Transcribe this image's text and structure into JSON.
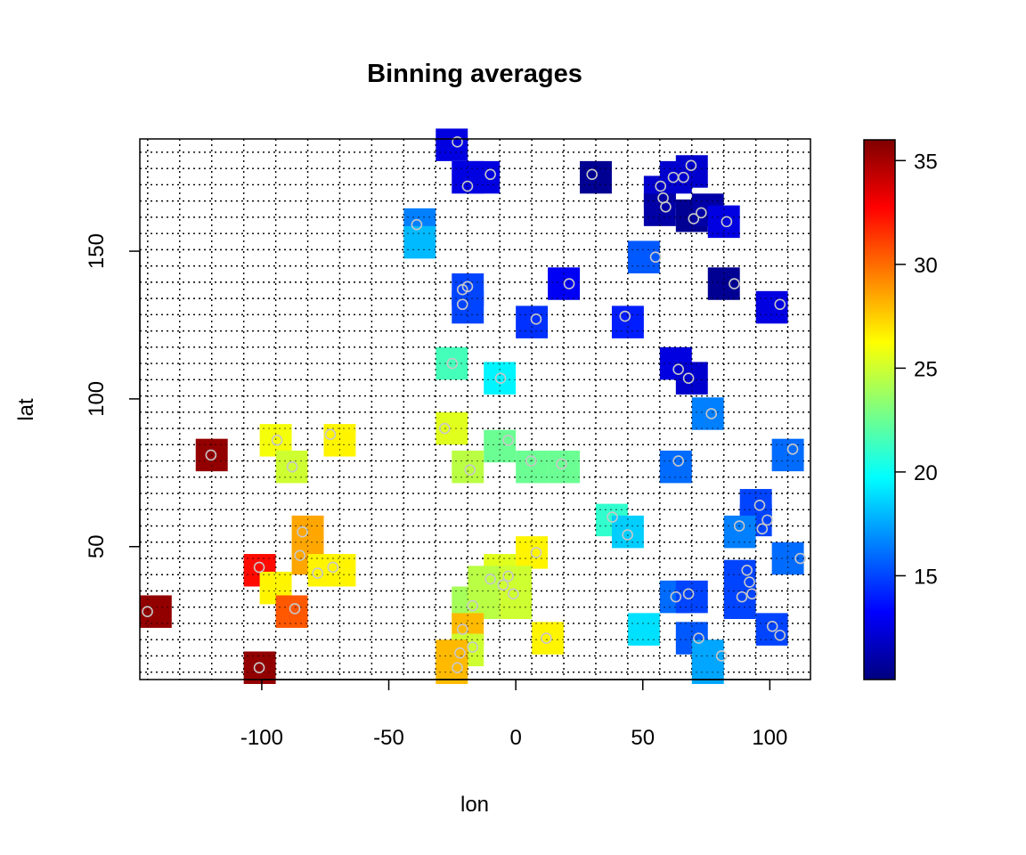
{
  "chart_data": {
    "type": "heatmap",
    "title": "Binning averages",
    "xlabel": "lon",
    "ylabel": "lat",
    "xlim": [
      -148,
      116
    ],
    "ylim": [
      5,
      188
    ],
    "x_ticks": [
      -100,
      -50,
      0,
      50,
      100
    ],
    "y_ticks": [
      50,
      100,
      150
    ],
    "grid": true,
    "cell_size": [
      12.6,
      11.0
    ],
    "legend": {
      "type": "colorbar",
      "placement": "right",
      "range": [
        10,
        36
      ],
      "ticks": [
        15,
        20,
        25,
        30,
        35
      ],
      "colors": [
        "#00007F",
        "#0000FF",
        "#007FFF",
        "#00FFFF",
        "#7FFF7F",
        "#FFFF00",
        "#FF7F00",
        "#FF0000",
        "#7F0000"
      ]
    },
    "cells": [
      {
        "x": -25.2,
        "y": 186,
        "v": 12.5
      },
      {
        "x": -18.9,
        "y": 175,
        "v": 12.5
      },
      {
        "x": -12.6,
        "y": 175,
        "v": 12.5
      },
      {
        "x": 31.5,
        "y": 175,
        "v": 10.5
      },
      {
        "x": 69.3,
        "y": 177,
        "v": 12.0
      },
      {
        "x": 63.0,
        "y": 175,
        "v": 12.0
      },
      {
        "x": 56.7,
        "y": 170,
        "v": 12.0
      },
      {
        "x": 56.7,
        "y": 164,
        "v": 11.0
      },
      {
        "x": 69.3,
        "y": 162,
        "v": 10.5
      },
      {
        "x": 75.6,
        "y": 164,
        "v": 11.0
      },
      {
        "x": 81.9,
        "y": 160,
        "v": 12.5
      },
      {
        "x": -37.8,
        "y": 159,
        "v": 16.5
      },
      {
        "x": -37.8,
        "y": 153,
        "v": 18.0
      },
      {
        "x": 50.4,
        "y": 148,
        "v": 15.5
      },
      {
        "x": -18.9,
        "y": 137,
        "v": 15.0
      },
      {
        "x": -18.9,
        "y": 131,
        "v": 15.0
      },
      {
        "x": 18.9,
        "y": 139,
        "v": 13.0
      },
      {
        "x": 81.9,
        "y": 139,
        "v": 10.5
      },
      {
        "x": 100.8,
        "y": 131,
        "v": 12.5
      },
      {
        "x": 6.3,
        "y": 126,
        "v": 14.5
      },
      {
        "x": 44.1,
        "y": 126,
        "v": 14.0
      },
      {
        "x": -25.2,
        "y": 112,
        "v": 21.5
      },
      {
        "x": 63.0,
        "y": 112,
        "v": 12.5
      },
      {
        "x": 69.3,
        "y": 107,
        "v": 12.0
      },
      {
        "x": -6.3,
        "y": 107,
        "v": 19.5
      },
      {
        "x": 75.6,
        "y": 95,
        "v": 16.5
      },
      {
        "x": -94.5,
        "y": 86,
        "v": 26.0
      },
      {
        "x": -69.3,
        "y": 86,
        "v": 26.5
      },
      {
        "x": -25.2,
        "y": 90,
        "v": 25.5
      },
      {
        "x": -6.3,
        "y": 84,
        "v": 22.5
      },
      {
        "x": 107.1,
        "y": 81,
        "v": 16.0
      },
      {
        "x": -119.7,
        "y": 81,
        "v": 35.5
      },
      {
        "x": -88.2,
        "y": 77,
        "v": 25.0
      },
      {
        "x": -18.9,
        "y": 77,
        "v": 24.5
      },
      {
        "x": 6.3,
        "y": 77,
        "v": 22.5
      },
      {
        "x": 18.9,
        "y": 77,
        "v": 22.5
      },
      {
        "x": 63.0,
        "y": 77,
        "v": 16.0
      },
      {
        "x": 94.5,
        "y": 64,
        "v": 15.0
      },
      {
        "x": 37.8,
        "y": 59,
        "v": 21.0
      },
      {
        "x": 94.5,
        "y": 59,
        "v": 15.0
      },
      {
        "x": 88.2,
        "y": 55,
        "v": 16.5
      },
      {
        "x": 44.1,
        "y": 55,
        "v": 18.5
      },
      {
        "x": -81.9,
        "y": 55,
        "v": 28.5
      },
      {
        "x": -81.9,
        "y": 46,
        "v": 28.5
      },
      {
        "x": 107.1,
        "y": 46,
        "v": 16.0
      },
      {
        "x": 6.3,
        "y": 48,
        "v": 26.5
      },
      {
        "x": -100.8,
        "y": 42,
        "v": 32.5
      },
      {
        "x": -75.6,
        "y": 42,
        "v": 26.5
      },
      {
        "x": -69.3,
        "y": 42,
        "v": 26.5
      },
      {
        "x": -6.3,
        "y": 42,
        "v": 25.5
      },
      {
        "x": -12.6,
        "y": 38,
        "v": 24.5
      },
      {
        "x": 0.0,
        "y": 38,
        "v": 25.0
      },
      {
        "x": -94.5,
        "y": 36,
        "v": 26.5
      },
      {
        "x": 88.2,
        "y": 40,
        "v": 15.0
      },
      {
        "x": 88.2,
        "y": 31,
        "v": 15.0
      },
      {
        "x": 63.0,
        "y": 33,
        "v": 16.0
      },
      {
        "x": 69.3,
        "y": 33,
        "v": 15.0
      },
      {
        "x": -18.9,
        "y": 31,
        "v": 24.0
      },
      {
        "x": -12.6,
        "y": 31,
        "v": 24.5
      },
      {
        "x": 0.0,
        "y": 31,
        "v": 25.0
      },
      {
        "x": -88.2,
        "y": 28,
        "v": 30.5
      },
      {
        "x": -141.75,
        "y": 28,
        "v": 35.5
      },
      {
        "x": 50.4,
        "y": 22,
        "v": 19.0
      },
      {
        "x": 100.8,
        "y": 22,
        "v": 15.0
      },
      {
        "x": -18.9,
        "y": 22,
        "v": 28.0
      },
      {
        "x": 12.6,
        "y": 19,
        "v": 26.5
      },
      {
        "x": 69.3,
        "y": 19,
        "v": 15.5
      },
      {
        "x": -18.9,
        "y": 15,
        "v": 25.0
      },
      {
        "x": -25.2,
        "y": 13,
        "v": 28.0
      },
      {
        "x": 75.6,
        "y": 13,
        "v": 17.5
      },
      {
        "x": -25.2,
        "y": 9,
        "v": 28.0
      },
      {
        "x": 75.6,
        "y": 9,
        "v": 17.5
      },
      {
        "x": -100.8,
        "y": 9,
        "v": 35.5
      }
    ],
    "points": [
      [
        -23,
        187
      ],
      [
        -19,
        172
      ],
      [
        -10,
        176
      ],
      [
        30,
        176
      ],
      [
        69,
        179
      ],
      [
        57,
        172
      ],
      [
        62,
        175
      ],
      [
        66,
        175
      ],
      [
        58,
        168
      ],
      [
        59,
        165
      ],
      [
        70,
        161
      ],
      [
        73,
        163
      ],
      [
        83,
        160
      ],
      [
        -39,
        159
      ],
      [
        55,
        148
      ],
      [
        -21,
        137
      ],
      [
        -19,
        138
      ],
      [
        -21,
        132
      ],
      [
        21,
        139
      ],
      [
        86,
        139
      ],
      [
        104,
        132
      ],
      [
        8,
        127
      ],
      [
        43,
        128
      ],
      [
        -25,
        112
      ],
      [
        64,
        110
      ],
      [
        68,
        107
      ],
      [
        -6,
        107
      ],
      [
        77,
        95
      ],
      [
        -94,
        86
      ],
      [
        -73,
        88
      ],
      [
        -28,
        90
      ],
      [
        -3,
        86
      ],
      [
        109,
        83
      ],
      [
        -120,
        81
      ],
      [
        -88,
        77
      ],
      [
        -18,
        76
      ],
      [
        6,
        79
      ],
      [
        18,
        78
      ],
      [
        64,
        79
      ],
      [
        96,
        64
      ],
      [
        38,
        60
      ],
      [
        99,
        59
      ],
      [
        88,
        57
      ],
      [
        97,
        56
      ],
      [
        44,
        54
      ],
      [
        -84,
        55
      ],
      [
        -85,
        47
      ],
      [
        112,
        46
      ],
      [
        8,
        48
      ],
      [
        -101,
        43
      ],
      [
        -78,
        41
      ],
      [
        -72,
        43
      ],
      [
        -10,
        39
      ],
      [
        -3,
        40
      ],
      [
        -5,
        37
      ],
      [
        91,
        42
      ],
      [
        92,
        38
      ],
      [
        89,
        33
      ],
      [
        93,
        34
      ],
      [
        63,
        33
      ],
      [
        68,
        34
      ],
      [
        -17,
        30
      ],
      [
        -1,
        34
      ],
      [
        -87,
        29
      ],
      [
        -145,
        28
      ],
      [
        -21,
        22
      ],
      [
        101,
        23
      ],
      [
        104,
        20
      ],
      [
        12,
        19
      ],
      [
        72,
        19
      ],
      [
        -17,
        16
      ],
      [
        -22,
        14
      ],
      [
        81,
        13
      ],
      [
        -23,
        9
      ],
      [
        -101,
        9
      ]
    ]
  }
}
